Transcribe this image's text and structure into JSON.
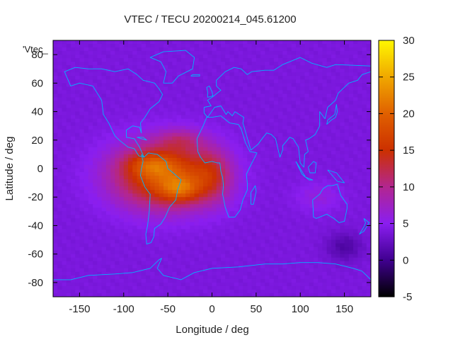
{
  "chart_data": {
    "type": "heatmap",
    "title": "VTEC / TECU 20200214_045.61200",
    "xlabel": "Longitude / deg",
    "ylabel": "Latitude / deg",
    "series_label": "'Vtec_",
    "xlim": [
      -180,
      180
    ],
    "ylim": [
      -90,
      90
    ],
    "x_ticks": [
      -150,
      -100,
      -50,
      0,
      50,
      100,
      150
    ],
    "y_ticks": [
      -80,
      -60,
      -40,
      -20,
      0,
      20,
      40,
      60,
      80
    ],
    "colorbar": {
      "min": -5,
      "max": 30,
      "ticks": [
        -5,
        0,
        5,
        10,
        15,
        20,
        25,
        30
      ]
    },
    "grid": {
      "lon_step": 5,
      "lat_step": 2.5,
      "background_value": 4
    },
    "blobs": [
      {
        "name": "equatorial-main",
        "lon": -55,
        "lat": -5,
        "sx": 55,
        "sy": 22,
        "amp": 15
      },
      {
        "name": "crest-south",
        "lon": -35,
        "lat": -15,
        "sx": 22,
        "sy": 9,
        "amp": 7
      },
      {
        "name": "crest-north",
        "lon": -70,
        "lat": 3,
        "sx": 28,
        "sy": 8,
        "amp": 5
      },
      {
        "name": "africa-lobe",
        "lon": 0,
        "lat": -5,
        "sx": 22,
        "sy": 18,
        "amp": 6
      },
      {
        "name": "north-atlantic",
        "lon": -35,
        "lat": 20,
        "sx": 25,
        "sy": 8,
        "amp": 4
      },
      {
        "name": "asia-patch",
        "lon": 120,
        "lat": -20,
        "sx": 25,
        "sy": 10,
        "amp": 2
      },
      {
        "name": "pacific-low",
        "lon": 150,
        "lat": -55,
        "sx": 20,
        "sy": 10,
        "amp": -3
      }
    ],
    "coastlines": [
      {
        "name": "south-america",
        "points": [
          [
            -80,
            10
          ],
          [
            -77,
            8
          ],
          [
            -72,
            11
          ],
          [
            -62,
            10
          ],
          [
            -52,
            5
          ],
          [
            -50,
            0
          ],
          [
            -44,
            -3
          ],
          [
            -35,
            -8
          ],
          [
            -39,
            -15
          ],
          [
            -41,
            -22
          ],
          [
            -48,
            -27
          ],
          [
            -53,
            -34
          ],
          [
            -58,
            -39
          ],
          [
            -65,
            -42
          ],
          [
            -66,
            -48
          ],
          [
            -69,
            -52
          ],
          [
            -74,
            -53
          ],
          [
            -75,
            -46
          ],
          [
            -73,
            -40
          ],
          [
            -71,
            -30
          ],
          [
            -70,
            -18
          ],
          [
            -76,
            -13
          ],
          [
            -81,
            -5
          ],
          [
            -80,
            0
          ],
          [
            -78,
            5
          ],
          [
            -80,
            10
          ]
        ]
      },
      {
        "name": "north-america",
        "points": [
          [
            -165,
            65
          ],
          [
            -160,
            58
          ],
          [
            -150,
            60
          ],
          [
            -135,
            58
          ],
          [
            -125,
            48
          ],
          [
            -123,
            38
          ],
          [
            -117,
            32
          ],
          [
            -110,
            23
          ],
          [
            -105,
            20
          ],
          [
            -95,
            15
          ],
          [
            -88,
            14
          ],
          [
            -83,
            9
          ],
          [
            -77,
            8
          ],
          [
            -82,
            15
          ],
          [
            -88,
            21
          ],
          [
            -97,
            22
          ],
          [
            -97,
            27
          ],
          [
            -90,
            30
          ],
          [
            -82,
            29
          ],
          [
            -80,
            25
          ],
          [
            -81,
            32
          ],
          [
            -76,
            36
          ],
          [
            -70,
            42
          ],
          [
            -66,
            44
          ],
          [
            -60,
            47
          ],
          [
            -56,
            52
          ],
          [
            -60,
            56
          ],
          [
            -65,
            60
          ],
          [
            -78,
            62
          ],
          [
            -85,
            66
          ],
          [
            -95,
            70
          ],
          [
            -110,
            68
          ],
          [
            -125,
            70
          ],
          [
            -140,
            70
          ],
          [
            -155,
            71
          ],
          [
            -167,
            68
          ],
          [
            -165,
            65
          ]
        ]
      },
      {
        "name": "greenland",
        "points": [
          [
            -55,
            60
          ],
          [
            -45,
            60
          ],
          [
            -38,
            65
          ],
          [
            -22,
            70
          ],
          [
            -20,
            78
          ],
          [
            -30,
            83
          ],
          [
            -55,
            82
          ],
          [
            -70,
            78
          ],
          [
            -58,
            75
          ],
          [
            -52,
            68
          ],
          [
            -55,
            60
          ]
        ]
      },
      {
        "name": "africa",
        "points": [
          [
            -17,
            21
          ],
          [
            -16,
            12
          ],
          [
            -13,
            8
          ],
          [
            -8,
            4
          ],
          [
            0,
            5
          ],
          [
            6,
            4
          ],
          [
            9,
            4
          ],
          [
            10,
            -2
          ],
          [
            12,
            -6
          ],
          [
            13,
            -12
          ],
          [
            12,
            -18
          ],
          [
            15,
            -27
          ],
          [
            19,
            -34
          ],
          [
            26,
            -34
          ],
          [
            32,
            -29
          ],
          [
            35,
            -22
          ],
          [
            40,
            -15
          ],
          [
            40,
            -10
          ],
          [
            39,
            -4
          ],
          [
            42,
            0
          ],
          [
            51,
            11
          ],
          [
            43,
            12
          ],
          [
            38,
            18
          ],
          [
            33,
            28
          ],
          [
            30,
            31
          ],
          [
            20,
            32
          ],
          [
            10,
            37
          ],
          [
            0,
            36
          ],
          [
            -6,
            36
          ],
          [
            -10,
            30
          ],
          [
            -17,
            21
          ]
        ]
      },
      {
        "name": "eurasia",
        "points": [
          [
            -9,
            43
          ],
          [
            -9,
            39
          ],
          [
            -5,
            36
          ],
          [
            3,
            43
          ],
          [
            10,
            44
          ],
          [
            16,
            38
          ],
          [
            18,
            40
          ],
          [
            23,
            37
          ],
          [
            26,
            40
          ],
          [
            36,
            36
          ],
          [
            35,
            32
          ],
          [
            44,
            13
          ],
          [
            52,
            17
          ],
          [
            58,
            22
          ],
          [
            62,
            25
          ],
          [
            67,
            24
          ],
          [
            72,
            21
          ],
          [
            77,
            8
          ],
          [
            80,
            13
          ],
          [
            80,
            16
          ],
          [
            88,
            22
          ],
          [
            92,
            21
          ],
          [
            98,
            15
          ],
          [
            100,
            4
          ],
          [
            104,
            1
          ],
          [
            105,
            10
          ],
          [
            109,
            12
          ],
          [
            106,
            20
          ],
          [
            110,
            21
          ],
          [
            117,
            24
          ],
          [
            122,
            30
          ],
          [
            122,
            40
          ],
          [
            128,
            35
          ],
          [
            131,
            43
          ],
          [
            140,
            48
          ],
          [
            143,
            53
          ],
          [
            155,
            60
          ],
          [
            165,
            62
          ],
          [
            170,
            66
          ],
          [
            180,
            68
          ],
          [
            180,
            72
          ],
          [
            140,
            73
          ],
          [
            130,
            71
          ],
          [
            113,
            74
          ],
          [
            100,
            78
          ],
          [
            80,
            73
          ],
          [
            70,
            69
          ],
          [
            60,
            69
          ],
          [
            45,
            68
          ],
          [
            40,
            66
          ],
          [
            33,
            70
          ],
          [
            25,
            71
          ],
          [
            15,
            68
          ],
          [
            5,
            62
          ],
          [
            5,
            58
          ],
          [
            10,
            55
          ],
          [
            8,
            54
          ],
          [
            0,
            50
          ],
          [
            -5,
            48
          ],
          [
            -1,
            44
          ],
          [
            -9,
            43
          ]
        ]
      },
      {
        "name": "australia",
        "points": [
          [
            114,
            -22
          ],
          [
            115,
            -34
          ],
          [
            118,
            -35
          ],
          [
            130,
            -32
          ],
          [
            138,
            -35
          ],
          [
            144,
            -38
          ],
          [
            150,
            -37
          ],
          [
            153,
            -28
          ],
          [
            153,
            -25
          ],
          [
            146,
            -19
          ],
          [
            142,
            -11
          ],
          [
            136,
            -12
          ],
          [
            131,
            -12
          ],
          [
            126,
            -14
          ],
          [
            122,
            -18
          ],
          [
            114,
            -22
          ]
        ]
      },
      {
        "name": "antarctica",
        "points": [
          [
            -180,
            -85
          ],
          [
            -180,
            -78
          ],
          [
            -160,
            -78
          ],
          [
            -140,
            -75
          ],
          [
            -110,
            -74
          ],
          [
            -90,
            -73
          ],
          [
            -70,
            -70
          ],
          [
            -60,
            -64
          ],
          [
            -57,
            -63
          ],
          [
            -62,
            -70
          ],
          [
            -55,
            -75
          ],
          [
            -35,
            -78
          ],
          [
            -20,
            -73
          ],
          [
            0,
            -70
          ],
          [
            30,
            -69
          ],
          [
            60,
            -67
          ],
          [
            80,
            -67
          ],
          [
            100,
            -66
          ],
          [
            120,
            -66
          ],
          [
            140,
            -67
          ],
          [
            160,
            -70
          ],
          [
            170,
            -72
          ],
          [
            180,
            -78
          ],
          [
            180,
            -85
          ]
        ]
      },
      {
        "name": "british-isles",
        "points": [
          [
            -5,
            50
          ],
          [
            1,
            51
          ],
          [
            0,
            54
          ],
          [
            -3,
            58
          ],
          [
            -6,
            57
          ],
          [
            -5,
            54
          ],
          [
            -5,
            50
          ]
        ]
      },
      {
        "name": "madagascar",
        "points": [
          [
            44,
            -25
          ],
          [
            47,
            -25
          ],
          [
            50,
            -16
          ],
          [
            49,
            -12
          ],
          [
            44,
            -17
          ],
          [
            44,
            -25
          ]
        ]
      },
      {
        "name": "japan",
        "points": [
          [
            130,
            31
          ],
          [
            135,
            34
          ],
          [
            140,
            36
          ],
          [
            142,
            40
          ],
          [
            141,
            45
          ],
          [
            139,
            38
          ],
          [
            131,
            34
          ],
          [
            130,
            31
          ]
        ]
      },
      {
        "name": "sumatra-java",
        "points": [
          [
            95,
            5
          ],
          [
            100,
            0
          ],
          [
            106,
            -6
          ],
          [
            114,
            -8
          ],
          [
            110,
            -8
          ],
          [
            102,
            -4
          ],
          [
            95,
            5
          ]
        ]
      },
      {
        "name": "borneo",
        "points": [
          [
            109,
            1
          ],
          [
            115,
            5
          ],
          [
            118,
            4
          ],
          [
            117,
            -3
          ],
          [
            111,
            -3
          ],
          [
            109,
            1
          ]
        ]
      },
      {
        "name": "new-guinea",
        "points": [
          [
            131,
            -1
          ],
          [
            141,
            -3
          ],
          [
            150,
            -10
          ],
          [
            142,
            -9
          ],
          [
            135,
            -4
          ],
          [
            131,
            -1
          ]
        ]
      },
      {
        "name": "new-zealand",
        "points": [
          [
            172,
            -35
          ],
          [
            178,
            -38
          ],
          [
            175,
            -41
          ],
          [
            172,
            -44
          ],
          [
            167,
            -46
          ],
          [
            172,
            -41
          ],
          [
            174,
            -38
          ],
          [
            172,
            -35
          ]
        ]
      },
      {
        "name": "iceland",
        "points": [
          [
            -24,
            65
          ],
          [
            -14,
            65
          ],
          [
            -14,
            66
          ],
          [
            -22,
            66
          ],
          [
            -24,
            65
          ]
        ]
      },
      {
        "name": "cuba",
        "points": [
          [
            -85,
            22
          ],
          [
            -78,
            22
          ],
          [
            -74,
            20
          ],
          [
            -80,
            21
          ],
          [
            -85,
            22
          ]
        ]
      }
    ]
  }
}
